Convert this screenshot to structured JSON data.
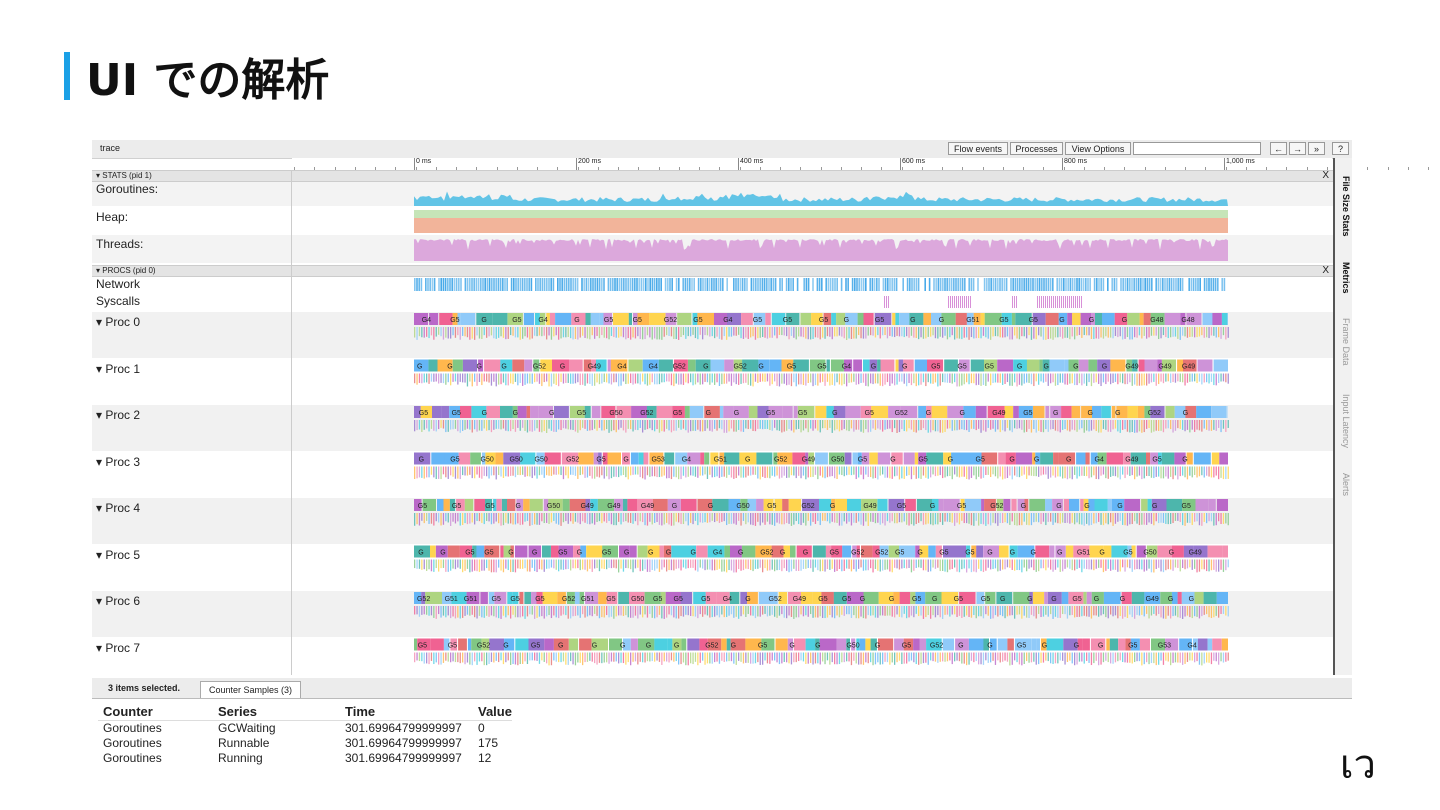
{
  "slide": {
    "title": "UI での解析",
    "corner_mark": "เว"
  },
  "viewer": {
    "title": "trace",
    "toolbar": {
      "flow_events": "Flow events",
      "processes": "Processes",
      "view_options": "View Options",
      "search_placeholder": "",
      "back": "←",
      "forward": "→",
      "more": "»",
      "help": "?"
    },
    "ruler": {
      "labels": [
        "0 ms",
        "200 ms",
        "400 ms",
        "600 ms",
        "800 ms",
        "1,000 ms"
      ]
    },
    "stats_group": {
      "label": "▾ STATS (pid 1)",
      "close": "X",
      "rows": [
        "Goroutines:",
        "Heap:",
        "Threads:"
      ]
    },
    "procs_group": {
      "label": "▾ PROCS (pid 0)",
      "close": "X",
      "rows": [
        "Network",
        "Syscalls"
      ]
    },
    "procs": [
      {
        "label": "▾  Proc 0",
        "goroutines": [
          "G4",
          "G5",
          "G",
          "G5",
          "G4",
          "G",
          "G5",
          "G5",
          "G52",
          "G5",
          "G4",
          "G5",
          "G5",
          "G5",
          "G",
          "G5",
          "G",
          "G",
          "G51",
          "G5",
          "G5",
          "G",
          "G",
          "G",
          "G48",
          "G48"
        ]
      },
      {
        "label": "▾  Proc 1",
        "goroutines": [
          "G",
          "G",
          "G",
          "G",
          "G52",
          "G",
          "G49",
          "G4",
          "G4",
          "G52",
          "G",
          "G52",
          "G",
          "G5",
          "G5",
          "G4",
          "G",
          "G",
          "G5",
          "G5",
          "G5",
          "G",
          "G",
          "G",
          "G",
          "G49",
          "G49",
          "G49"
        ]
      },
      {
        "label": "▾  Proc 2",
        "goroutines": [
          "G5",
          "G5",
          "G",
          "G",
          "G",
          "G5",
          "G50",
          "G52",
          "G5",
          "G",
          "G",
          "G5",
          "G5",
          "G",
          "G5",
          "G52",
          "G",
          "G",
          "G49",
          "G5",
          "G",
          "G",
          "G",
          "G52",
          "G"
        ]
      },
      {
        "label": "▾  Proc 3",
        "goroutines": [
          "G",
          "G5",
          "G50",
          "G50",
          "G50",
          "G52",
          "G5",
          "G",
          "G53",
          "G4",
          "G51",
          "G",
          "G52",
          "G49",
          "G50",
          "G5",
          "G",
          "G5",
          "G",
          "G5",
          "G",
          "G",
          "G",
          "G4",
          "G49",
          "G5",
          "G"
        ]
      },
      {
        "label": "▾  Proc 4",
        "goroutines": [
          "G5",
          "G5",
          "G5",
          "G",
          "G50",
          "G49",
          "G49",
          "G49",
          "G",
          "G",
          "G50",
          "G5",
          "G52",
          "G",
          "G49",
          "G5",
          "G",
          "G5",
          "G52",
          "G",
          "G",
          "G",
          "G",
          "G",
          "G5"
        ]
      },
      {
        "label": "▾  Proc 5",
        "goroutines": [
          "G",
          "G",
          "G5",
          "G5",
          "G",
          "G",
          "G5",
          "G",
          "G5",
          "G",
          "G",
          "G",
          "G",
          "G4",
          "G",
          "G52",
          "G",
          "G",
          "G5",
          "G52",
          "G52",
          "G5",
          "G",
          "G5",
          "G5",
          "G",
          "G",
          "G",
          "G",
          "G51",
          "G",
          "G5",
          "G50",
          "G",
          "G49"
        ]
      },
      {
        "label": "▾  Proc 6",
        "goroutines": [
          "G52",
          "G51",
          "G51",
          "G5",
          "G5",
          "G5",
          "G52",
          "G51",
          "G5",
          "G50",
          "G5",
          "G5",
          "G5",
          "G4",
          "G",
          "G52",
          "G49",
          "G5",
          "G5",
          "G",
          "G",
          "G5",
          "G",
          "G5",
          "G5",
          "G",
          "G",
          "G",
          "G5",
          "G",
          "G",
          "G49",
          "G",
          "G"
        ]
      },
      {
        "label": "▾  Proc 7",
        "goroutines": [
          "G5",
          "G5",
          "G52",
          "G",
          "G5",
          "G",
          "G",
          "G",
          "G",
          "G",
          "G52",
          "G",
          "G5",
          "G",
          "G",
          "G50",
          "G",
          "G5",
          "G52",
          "G",
          "G",
          "G5",
          "G",
          "G",
          "G",
          "G5",
          "G53",
          "G4"
        ]
      }
    ],
    "side_tabs": [
      "File Size Stats",
      "Metrics",
      "Frame Data",
      "Input Latency",
      "Alerts"
    ],
    "colors": {
      "goroutines": "#62c4e6",
      "heap_top": "#c6e5b8",
      "heap_bottom": "#f2b49a",
      "threads": "#dca8dc",
      "network": "#45a8e8",
      "syscalls": "#d890d8",
      "palette": [
        "#f48fb1",
        "#ce93d8",
        "#81c784",
        "#64b5f6",
        "#ffb74d",
        "#e57373",
        "#4dd0e1",
        "#aed581",
        "#ba68c8",
        "#f06292",
        "#9575cd",
        "#4db6ac",
        "#ffd54f",
        "#90caf9"
      ]
    }
  },
  "bottom_panel": {
    "selection": "3 items selected.",
    "tab": "Counter Samples (3)",
    "columns": [
      "Counter",
      "Series",
      "Time",
      "Value"
    ],
    "rows": [
      [
        "Goroutines",
        "GCWaiting",
        "301.69964799999997",
        "0"
      ],
      [
        "Goroutines",
        "Runnable",
        "301.69964799999997",
        "175"
      ],
      [
        "Goroutines",
        "Running",
        "301.69964799999997",
        "12"
      ]
    ]
  }
}
